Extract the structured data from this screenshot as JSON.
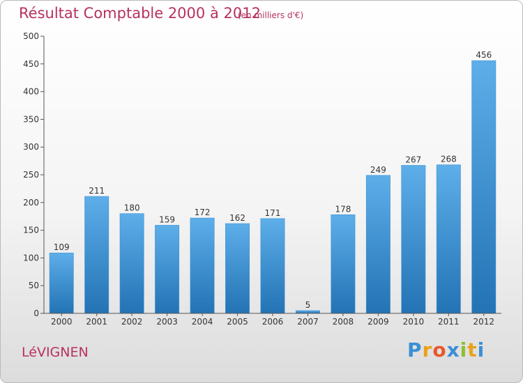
{
  "chart_data": {
    "type": "bar",
    "title": "Résultat Comptable 2000 à 2012",
    "subtitle": "(en milliers d'€)",
    "categories": [
      "2000",
      "2001",
      "2002",
      "2003",
      "2004",
      "2005",
      "2006",
      "2007",
      "2008",
      "2009",
      "2010",
      "2011",
      "2012"
    ],
    "values": [
      109,
      211,
      180,
      159,
      172,
      162,
      171,
      5,
      178,
      249,
      267,
      268,
      456
    ],
    "ylim": [
      0,
      500
    ],
    "yticks": [
      0,
      50,
      100,
      150,
      200,
      250,
      300,
      350,
      400,
      450,
      500
    ],
    "xlabel": "",
    "ylabel": "",
    "grid": false,
    "bar_color_top": "#5daee9",
    "bar_color_bottom": "#2373b5"
  },
  "commune": "LéVIGNEN",
  "logo": {
    "letters": [
      "P",
      "r",
      "o",
      "x",
      "i",
      "t",
      "i"
    ],
    "colors": [
      "#3a8fd6",
      "#e8a21b",
      "#e8582c",
      "#3a8fd6",
      "#8dbf2e",
      "#e8a21b",
      "#3a8fd6"
    ]
  },
  "colors": {
    "accent": "#b7315f"
  }
}
